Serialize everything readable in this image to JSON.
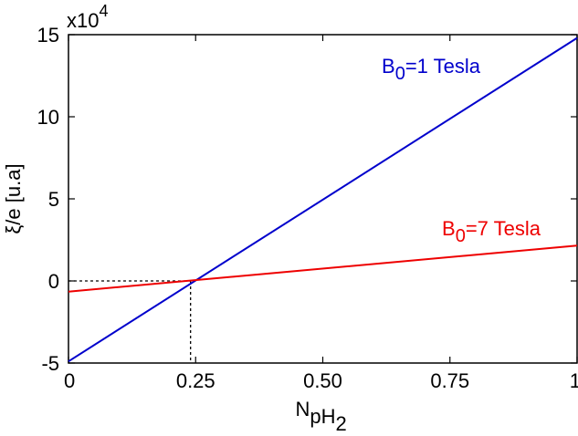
{
  "chart_data": {
    "type": "line",
    "xlabel": "N",
    "xlabel_subscript": "pH",
    "xlabel_subscript_sub": "2",
    "ylabel": "ξ/e [u.a]",
    "y_multiplier": "x10",
    "y_multiplier_exponent": "4",
    "xlim": [
      0,
      1
    ],
    "ylim": [
      -5,
      15
    ],
    "xticks": [
      0,
      0.25,
      0.5,
      0.75,
      1
    ],
    "xtick_labels": [
      "0",
      "0.25",
      "0.50",
      "0.75",
      "1"
    ],
    "yticks": [
      -5,
      0,
      5,
      10,
      15
    ],
    "ytick_labels": [
      "-5",
      "0",
      "5",
      "10",
      "15"
    ],
    "grid": false,
    "series": [
      {
        "name": "B0=1 Tesla",
        "label_base": "B",
        "label_sub": "0",
        "label_rest": "=1 Tesla",
        "color": "#0000cc",
        "x": [
          0,
          1
        ],
        "y": [
          -4.9,
          14.8
        ]
      },
      {
        "name": "B0=7 Tesla",
        "label_base": "B",
        "label_sub": "0",
        "label_rest": "=7 Tesla",
        "color": "#ee0000",
        "x": [
          0,
          1
        ],
        "y": [
          -0.65,
          2.15
        ]
      }
    ],
    "annotations": {
      "crossing_x": 0.24,
      "crossing_y": 0,
      "style": "dashed"
    }
  }
}
